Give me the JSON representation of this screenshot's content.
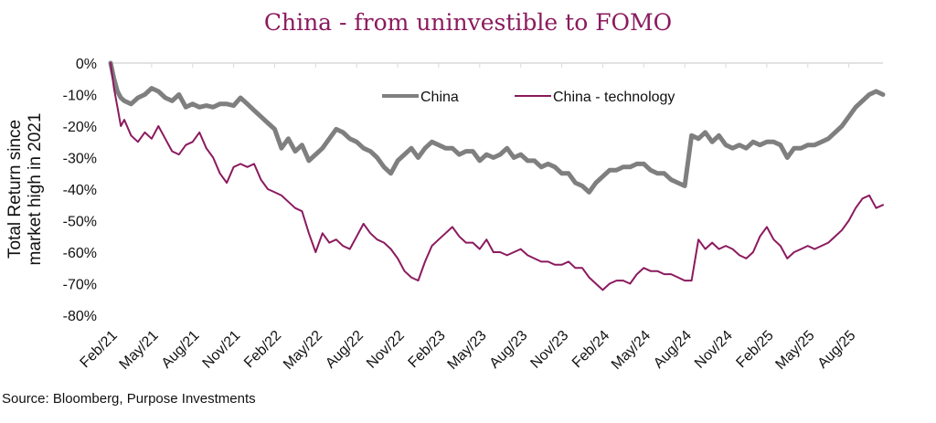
{
  "chart_data": {
    "type": "line",
    "title": "China - from uninvestible to FOMO",
    "xlabel": "",
    "ylabel": "Total Return since market high in 2021",
    "ylabel_lines": [
      "Total Return since",
      "market high in 2021"
    ],
    "ylim": [
      -80,
      0
    ],
    "y_ticks": [
      "0%",
      "-10%",
      "-20%",
      "-30%",
      "-40%",
      "-50%",
      "-60%",
      "-70%",
      "-80%"
    ],
    "y_tick_values": [
      0,
      -10,
      -20,
      -30,
      -40,
      -50,
      -60,
      -70,
      -80
    ],
    "x_ticks": [
      "Feb/21",
      "May/21",
      "Aug/21",
      "Nov/21",
      "Feb/22",
      "May/22",
      "Aug/22",
      "Nov/22",
      "Feb/23",
      "May/23",
      "Aug/23",
      "Nov/23",
      "Feb/24",
      "May/24",
      "Aug/24",
      "Nov/24",
      "Feb/25",
      "May/25",
      "Aug/25"
    ],
    "x_range_months": [
      0,
      56.5
    ],
    "x_unit": "months since Feb 2021 (semi-monthly samples)",
    "grid": false,
    "legend": {
      "position": "top-center",
      "entries": [
        "China",
        "China - technology"
      ]
    },
    "series": [
      {
        "name": "China",
        "color": "#7f7f7f",
        "x": [
          0,
          0.25,
          0.5,
          0.75,
          1,
          1.5,
          2,
          2.5,
          3,
          3.5,
          4,
          4.5,
          5,
          5.5,
          6,
          6.5,
          7,
          7.5,
          8,
          8.5,
          9,
          9.5,
          10,
          10.5,
          11,
          11.5,
          12,
          12.5,
          13,
          13.5,
          14,
          14.5,
          15,
          15.5,
          16,
          16.5,
          17,
          17.5,
          18,
          18.5,
          19,
          19.5,
          20,
          20.5,
          21,
          21.5,
          22,
          22.5,
          23,
          23.5,
          24,
          24.5,
          25,
          25.5,
          26,
          26.5,
          27,
          27.5,
          28,
          28.5,
          29,
          29.5,
          30,
          30.5,
          31,
          31.5,
          32,
          32.5,
          33,
          33.5,
          34,
          34.5,
          35,
          35.5,
          36,
          36.5,
          37,
          37.5,
          38,
          38.5,
          39,
          39.5,
          40,
          40.5,
          41,
          41.5,
          42,
          42.5,
          43,
          43.5,
          44,
          44.5,
          45,
          45.5,
          46,
          46.5,
          47,
          47.5,
          48,
          48.5,
          49,
          49.5,
          50,
          50.5,
          51,
          51.5,
          52,
          52.5,
          53,
          53.5,
          54,
          54.5,
          55,
          55.5,
          56,
          56.5
        ],
        "values": [
          0,
          -5,
          -9,
          -11,
          -12,
          -13,
          -11,
          -10,
          -8,
          -9,
          -11,
          -12,
          -10,
          -14,
          -13,
          -14,
          -13.5,
          -14,
          -13,
          -13,
          -13.5,
          -11,
          -13,
          -15,
          -17,
          -19,
          -21,
          -27,
          -24,
          -28,
          -26,
          -31,
          -29,
          -27,
          -24,
          -21,
          -22,
          -24,
          -25,
          -27,
          -28,
          -30,
          -33,
          -35,
          -31,
          -29,
          -27,
          -30,
          -27,
          -25,
          -26,
          -27,
          -27,
          -29,
          -28,
          -28,
          -31,
          -29,
          -30,
          -29,
          -27,
          -30,
          -29,
          -31,
          -31,
          -33,
          -32,
          -33,
          -35,
          -35,
          -38,
          -39,
          -41,
          -38,
          -36,
          -34,
          -34,
          -33,
          -33,
          -32,
          -32,
          -34,
          -35,
          -35,
          -37,
          -38,
          -39,
          -23,
          -24,
          -22,
          -25,
          -23,
          -26,
          -27,
          -26,
          -27,
          -25,
          -26,
          -25,
          -25,
          -26,
          -30,
          -27,
          -27,
          -26,
          -26,
          -25,
          -24,
          -22,
          -20,
          -17,
          -14,
          -12,
          -10,
          -9,
          -10
        ]
      },
      {
        "name": "China - technology",
        "color": "#8b1a5e",
        "x": [
          0,
          0.25,
          0.5,
          0.75,
          1,
          1.5,
          2,
          2.5,
          3,
          3.5,
          4,
          4.5,
          5,
          5.5,
          6,
          6.5,
          7,
          7.5,
          8,
          8.5,
          9,
          9.5,
          10,
          10.5,
          11,
          11.5,
          12,
          12.5,
          13,
          13.5,
          14,
          14.5,
          15,
          15.5,
          16,
          16.5,
          17,
          17.5,
          18,
          18.5,
          19,
          19.5,
          20,
          20.5,
          21,
          21.5,
          22,
          22.5,
          23,
          23.5,
          24,
          24.5,
          25,
          25.5,
          26,
          26.5,
          27,
          27.5,
          28,
          28.5,
          29,
          29.5,
          30,
          30.5,
          31,
          31.5,
          32,
          32.5,
          33,
          33.5,
          34,
          34.5,
          35,
          35.5,
          36,
          36.5,
          37,
          37.5,
          38,
          38.5,
          39,
          39.5,
          40,
          40.5,
          41,
          41.5,
          42,
          42.5,
          43,
          43.5,
          44,
          44.5,
          45,
          45.5,
          46,
          46.5,
          47,
          47.5,
          48,
          48.5,
          49,
          49.5,
          50,
          50.5,
          51,
          51.5,
          52,
          52.5,
          53,
          53.5,
          54,
          54.5,
          55,
          55.5,
          56,
          56.5
        ],
        "values": [
          0,
          -8,
          -14,
          -20,
          -18,
          -23,
          -25,
          -22,
          -24,
          -20,
          -24,
          -28,
          -29,
          -26,
          -25,
          -22,
          -27,
          -30,
          -35,
          -38,
          -33,
          -32,
          -33,
          -32,
          -37,
          -40,
          -41,
          -42,
          -44,
          -46,
          -47,
          -54,
          -60,
          -54,
          -57,
          -56,
          -58,
          -59,
          -55,
          -51,
          -54,
          -56,
          -57,
          -59,
          -62,
          -66,
          -68,
          -69,
          -63,
          -58,
          -56,
          -54,
          -52,
          -55,
          -57,
          -57,
          -59,
          -56,
          -60,
          -60,
          -61,
          -60,
          -59,
          -61,
          -62,
          -63,
          -63,
          -64,
          -64,
          -63,
          -65,
          -65,
          -68,
          -70,
          -72,
          -70,
          -69,
          -69,
          -70,
          -67,
          -65,
          -66,
          -66,
          -67,
          -67,
          -68,
          -69,
          -69,
          -56,
          -59,
          -57,
          -59,
          -58,
          -59,
          -61,
          -62,
          -60,
          -55,
          -52,
          -56,
          -58,
          -62,
          -60,
          -59,
          -58,
          -59,
          -58,
          -57,
          -55,
          -53,
          -50,
          -46,
          -43,
          -42,
          -46,
          -45
        ]
      }
    ]
  },
  "source": "Source: Bloomberg, Purpose Investments"
}
